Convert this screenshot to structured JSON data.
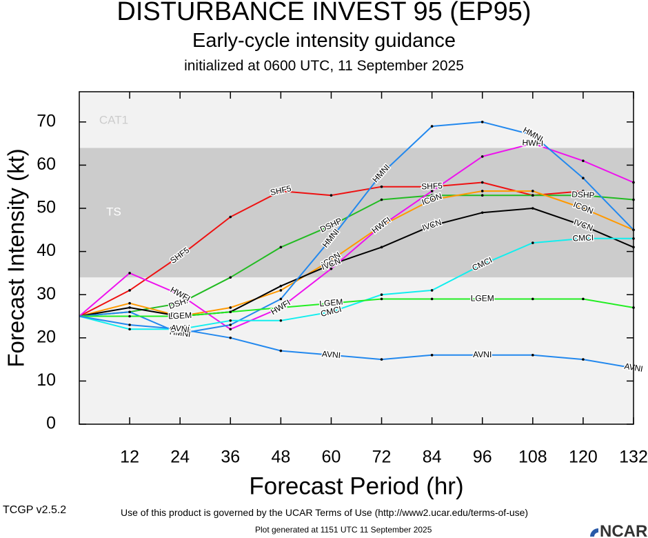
{
  "header": {
    "title": "DISTURBANCE INVEST 95 (EP95)",
    "subtitle": "Early-cycle intensity guidance",
    "init": "initialized at 0600 UTC, 11 September 2025"
  },
  "footer": {
    "terms": "Use of this product is governed by the UCAR Terms of Use (http://www2.ucar.edu/terms-of-use)",
    "version": "TCGP v2.5.2",
    "generated": "Plot generated at 1151 UTC   11 September 2025",
    "logo_text": "NCAR"
  },
  "chart_data": {
    "type": "line",
    "title": "DISTURBANCE INVEST 95 (EP95)",
    "xlabel": "Forecast Period (hr)",
    "ylabel": "Forecast Intensity (kt)",
    "xlim": [
      0,
      132
    ],
    "ylim": [
      0,
      77
    ],
    "xticks": [
      12,
      24,
      36,
      48,
      60,
      72,
      84,
      96,
      108,
      120,
      132
    ],
    "yticks": [
      0,
      10,
      20,
      30,
      40,
      50,
      60,
      70
    ],
    "grid": false,
    "bands": [
      {
        "name": "TS",
        "from": 34,
        "to": 64,
        "color": "#cccccc"
      },
      {
        "name": "CAT1",
        "from": 64,
        "to": 77,
        "color": "#f2f2f2"
      }
    ],
    "below_band_color": "#f2f2f2",
    "series": [
      {
        "name": "SHF5",
        "color": "#ee1111",
        "label_at": [
          24,
          48,
          84
        ],
        "x": [
          0,
          12,
          24,
          36,
          48,
          60,
          72,
          84,
          96,
          108,
          120
        ],
        "y": [
          25,
          31,
          39,
          48,
          54,
          53,
          55,
          55,
          56,
          53,
          54
        ]
      },
      {
        "name": "DSHP",
        "color": "#22bb22",
        "label_at": [
          24,
          60,
          120
        ],
        "x": [
          0,
          12,
          24,
          36,
          48,
          60,
          72,
          84,
          96,
          108,
          120,
          132
        ],
        "y": [
          25,
          26,
          28,
          34,
          41,
          46,
          52,
          53,
          53,
          53,
          53,
          52
        ]
      },
      {
        "name": "ICON",
        "color": "#ff9900",
        "label_at": [
          24,
          60,
          84,
          120
        ],
        "x": [
          0,
          12,
          24,
          36,
          48,
          60,
          72,
          84,
          96,
          108,
          120,
          132
        ],
        "y": [
          25,
          28,
          25,
          27,
          31,
          38,
          46,
          52,
          54,
          54,
          50,
          45
        ]
      },
      {
        "name": "IVCN",
        "color": "#000000",
        "label_at": [
          24,
          60,
          84,
          120
        ],
        "x": [
          0,
          12,
          24,
          36,
          48,
          60,
          72,
          84,
          96,
          108,
          120,
          132
        ],
        "y": [
          25,
          27,
          25,
          26,
          32,
          37,
          41,
          46,
          49,
          50,
          46,
          41
        ]
      },
      {
        "name": "HWFI",
        "color": "#ee11ee",
        "label_at": [
          24,
          48,
          72,
          108
        ],
        "x": [
          0,
          12,
          24,
          36,
          48,
          60,
          72,
          84,
          96,
          108,
          120,
          132
        ],
        "y": [
          25,
          35,
          30,
          22,
          27,
          36,
          46,
          54,
          62,
          65,
          61,
          56
        ]
      },
      {
        "name": "HMNI",
        "color": "#2288ee",
        "label_at": [
          24,
          60,
          72,
          108
        ],
        "x": [
          0,
          12,
          24,
          36,
          48,
          60,
          72,
          84,
          96,
          108,
          120,
          132
        ],
        "y": [
          25,
          26,
          21,
          23,
          29,
          43,
          58,
          69,
          70,
          67,
          57,
          45
        ]
      },
      {
        "name": "CMCI",
        "color": "#11eeee",
        "label_at": [
          24,
          60,
          96,
          120
        ],
        "x": [
          0,
          12,
          24,
          36,
          48,
          60,
          72,
          84,
          96,
          108,
          120,
          132
        ],
        "y": [
          25,
          22,
          22,
          24,
          24,
          26,
          30,
          31,
          37,
          42,
          43,
          43
        ]
      },
      {
        "name": "LGEM",
        "color": "#22ee22",
        "label_at": [
          24,
          60,
          96
        ],
        "x": [
          0,
          12,
          24,
          36,
          48,
          60,
          72,
          84,
          96,
          108,
          120,
          132
        ],
        "y": [
          25,
          25,
          25,
          26,
          27,
          28,
          29,
          29,
          29,
          29,
          29,
          27
        ]
      },
      {
        "name": "AVNI",
        "color": "#2288ee",
        "label_at": [
          24,
          60,
          96,
          132
        ],
        "x": [
          0,
          12,
          24,
          36,
          48,
          60,
          72,
          84,
          96,
          108,
          120,
          132
        ],
        "y": [
          25,
          23,
          22,
          20,
          17,
          16,
          15,
          16,
          16,
          16,
          15,
          13
        ]
      }
    ]
  }
}
